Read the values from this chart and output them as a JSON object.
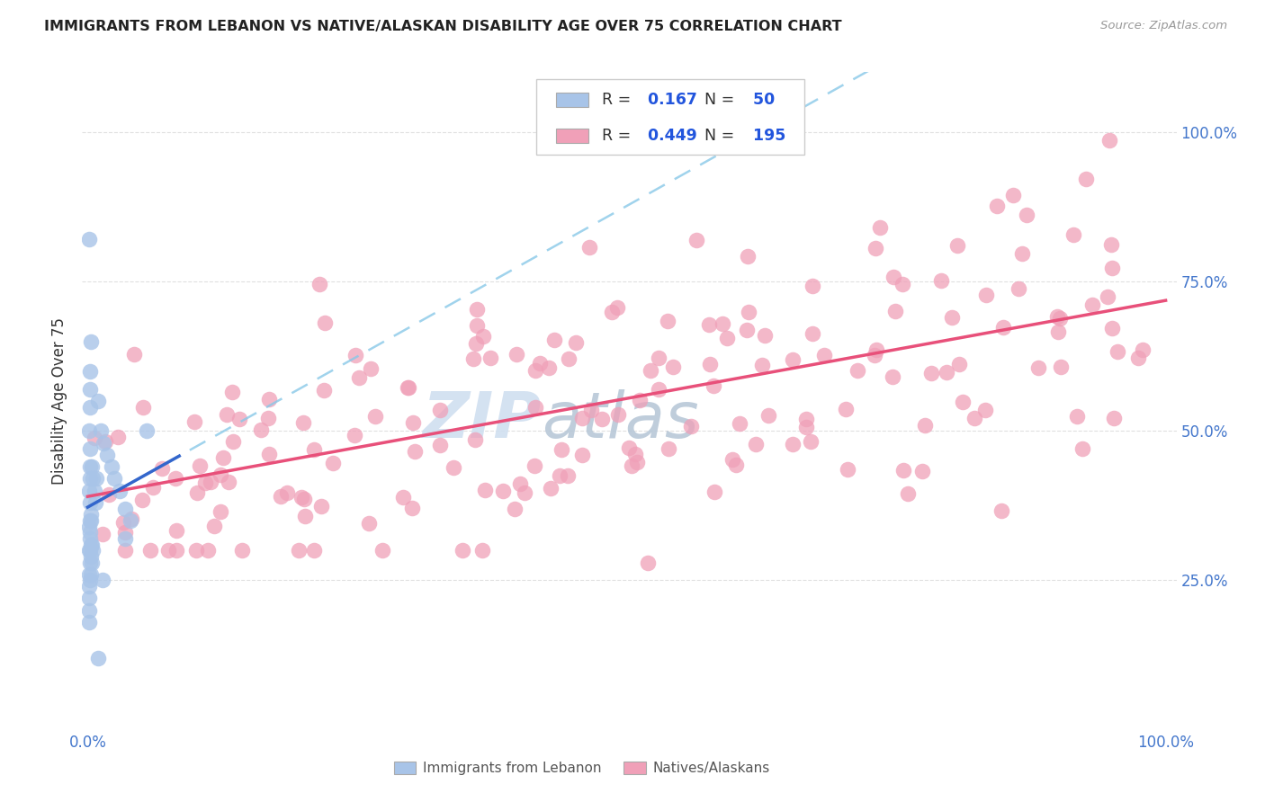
{
  "title": "IMMIGRANTS FROM LEBANON VS NATIVE/ALASKAN DISABILITY AGE OVER 75 CORRELATION CHART",
  "source": "Source: ZipAtlas.com",
  "ylabel": "Disability Age Over 75",
  "legend_labels": [
    "Immigrants from Lebanon",
    "Natives/Alaskans"
  ],
  "r_lebanon": 0.167,
  "n_lebanon": 50,
  "r_native": 0.449,
  "n_native": 195,
  "color_lebanon": "#a8c4e8",
  "color_native": "#f0a0b8",
  "trendline_lebanon_solid": "#3366cc",
  "trendline_native_solid": "#e8507a",
  "trendline_dashed": "#88c8e8",
  "watermark_color": "#d0dff0",
  "xlim": [
    0.0,
    1.0
  ],
  "ylim": [
    0.0,
    1.08
  ],
  "ytick_vals": [
    0.25,
    0.5,
    0.75,
    1.0
  ],
  "ytick_labels": [
    "25.0%",
    "50.0%",
    "75.0%",
    "100.0%"
  ],
  "xtick_labels": [
    "0.0%",
    "100.0%"
  ]
}
